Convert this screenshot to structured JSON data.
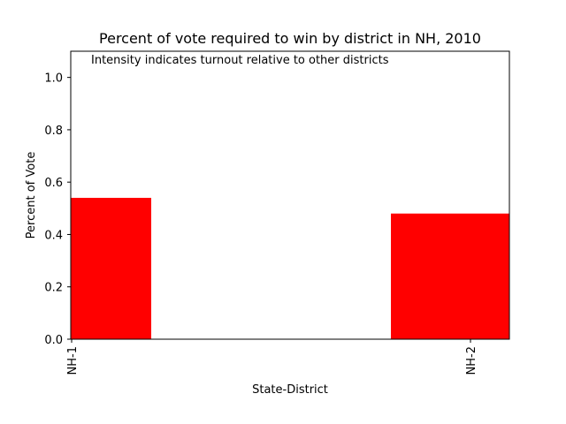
{
  "chart_data": {
    "type": "bar",
    "title": "Percent of vote required to win by district in NH, 2010",
    "annotation": "Intensity indicates turnout relative to other districts",
    "xlabel": "State-District",
    "ylabel": "Percent of Vote",
    "categories": [
      "NH-1",
      "NH-2"
    ],
    "values": [
      0.54,
      0.48
    ],
    "ylim": [
      0,
      1.1
    ],
    "yticks": [
      "0.0",
      "0.2",
      "0.4",
      "0.6",
      "0.8",
      "1.0"
    ],
    "grid": false,
    "bar_color": "#ff0000"
  }
}
